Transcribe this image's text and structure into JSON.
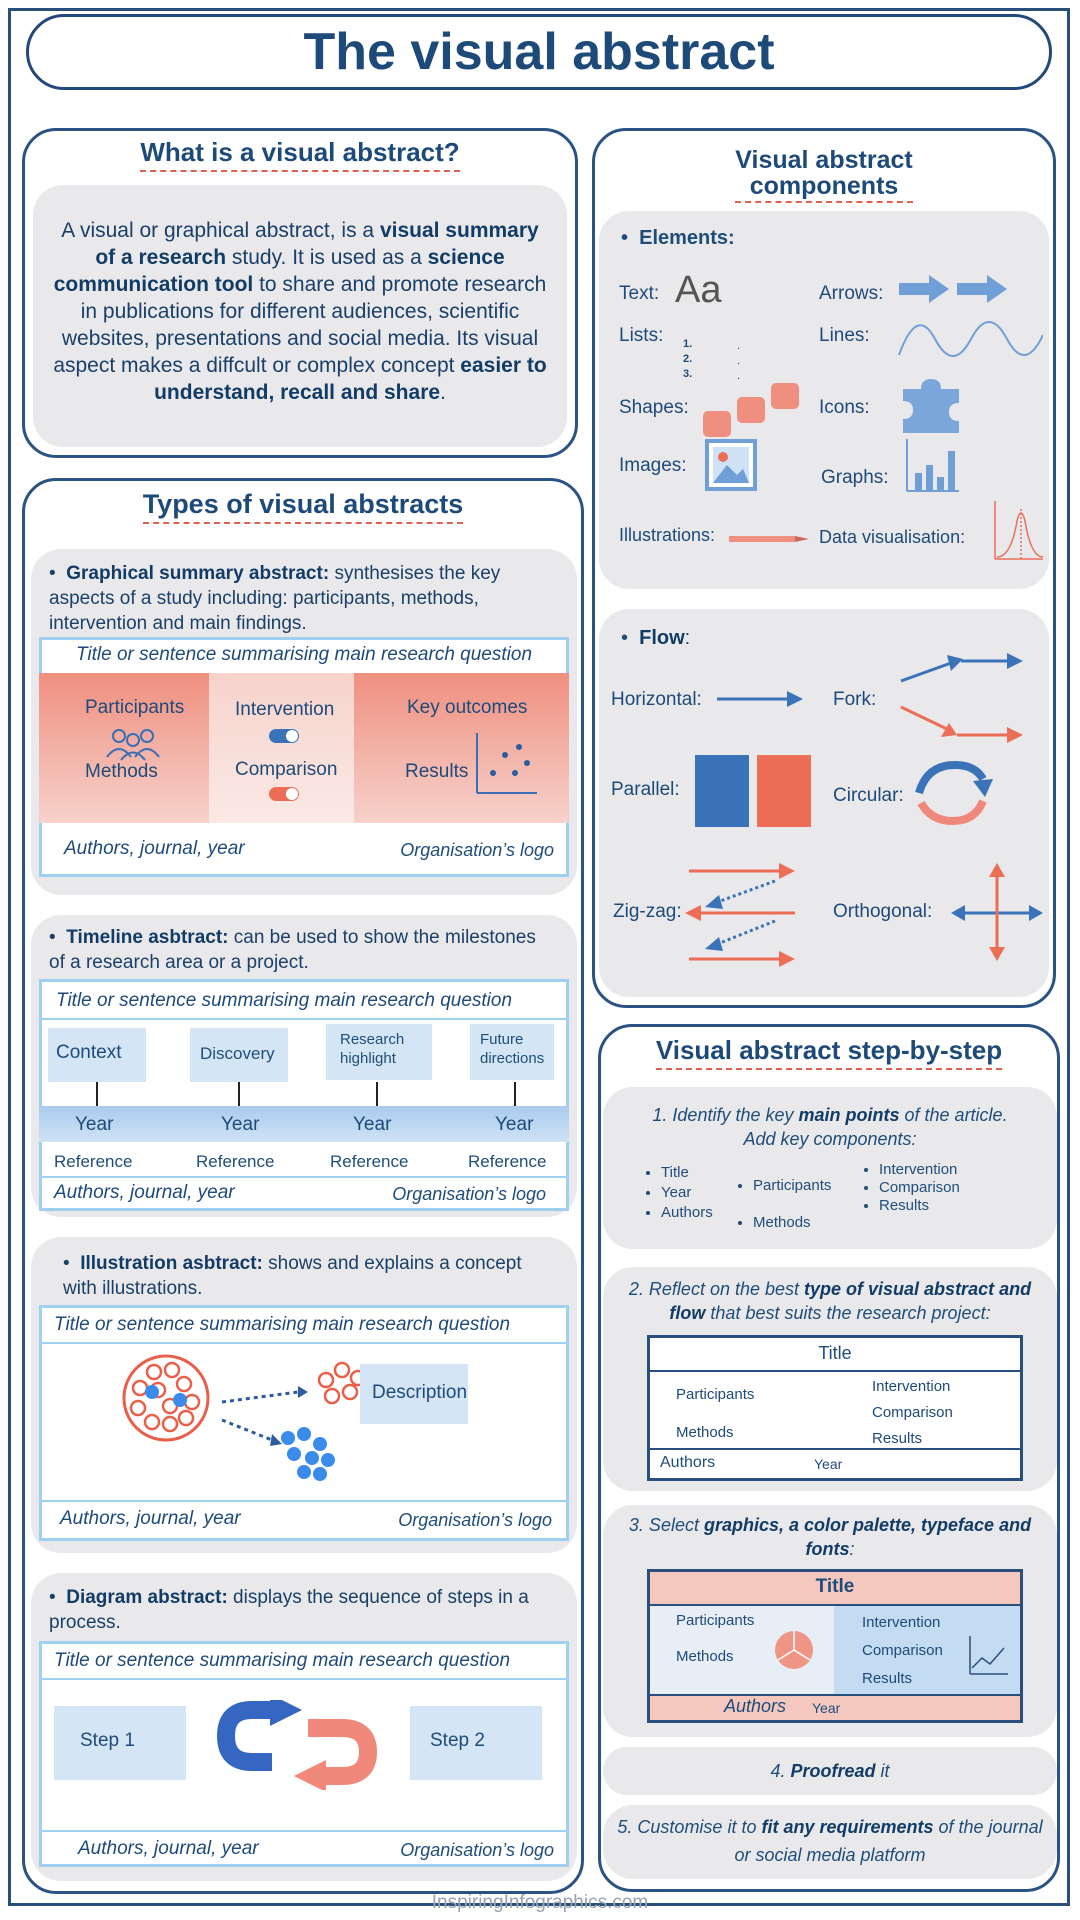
{
  "title": "The visual abstract",
  "what": {
    "heading": "What is a visual abstract?",
    "p1": "A visual or graphical abstract, is a ",
    "b1": "visual summary of a research",
    "p2": " study. It is used as a ",
    "b2": "science communication tool",
    "p3": " to share and promote research in publications for different audiences, scientific websites, presentations and social media. Its visual aspect makes a diffcult or complex concept ",
    "b3": "easier to understand, recall and share",
    "p4": "."
  },
  "types": {
    "heading": "Types of visual abstracts",
    "graphical": {
      "bold": "Graphical summary abstract:",
      "text": " synthesises the key aspects of a study including: participants, methods, intervention and main findings.",
      "title": "Title or sentence summarising main research question",
      "participants": "Participants",
      "methods": "Methods",
      "intervention": "Intervention",
      "comparison": "Comparison",
      "key_outcomes": "Key outcomes",
      "results": "Results",
      "authors": "Authors, journal, year",
      "logo": "Organisation’s logo"
    },
    "timeline": {
      "bold": "Timeline asbtract:",
      "text": " can be used to show the milestones of a research area or a project.",
      "title": "Title or sentence summarising main research question",
      "stages": [
        "Context",
        "Discovery",
        "Research highlight",
        "Future directions"
      ],
      "year": "Year",
      "reference": "Reference",
      "authors": "Authors, journal, year",
      "logo": "Organisation’s logo"
    },
    "illustration": {
      "bold": "Illustration asbtract:",
      "text": " shows and explains a concept with illustrations.",
      "title": "Title or sentence summarising main research question",
      "description": "Description",
      "authors": "Authors, journal, year",
      "logo": "Organisation’s logo"
    },
    "diagram": {
      "bold": "Diagram abstract:",
      "text": " displays the sequence of steps in a process.",
      "title": "Title or sentence summarising main research question",
      "step1": "Step 1",
      "step2": "Step 2",
      "authors": "Authors, journal, year",
      "logo": "Organisation’s logo"
    }
  },
  "components": {
    "heading1": "Visual abstract",
    "heading2": "components",
    "elements_label": "Elements:",
    "text": "Text:",
    "aa": "Aa",
    "arrows": "Arrows:",
    "lists": "Lists:",
    "list_nums": [
      "1.",
      "2.",
      "3."
    ],
    "lines": "Lines:",
    "shapes": "Shapes:",
    "icons": "Icons:",
    "images": "Images:",
    "graphs": "Graphs:",
    "illustrations": "Illustrations:",
    "data_vis": "Data visualisation:",
    "flow_label": "Flow",
    "flow_colon": ":",
    "horizontal": "Horizontal:",
    "fork": "Fork:",
    "parallel": "Parallel:",
    "circular": "Circular:",
    "zigzag": "Zig-zag:",
    "orthogonal": "Orthogonal:",
    "colors": {
      "blue": "#3a73b8",
      "red": "#ec6e57",
      "light_blue": "#6f9fd6"
    }
  },
  "steps": {
    "heading": "Visual abstract step-by-step",
    "s1a": "1. Identify the key ",
    "s1b": "main points",
    "s1c": " of the article.",
    "s1d": "Add key components:",
    "list1": [
      "Title",
      "Year",
      "Authors"
    ],
    "list2": [
      "Participants",
      "Methods"
    ],
    "list3": [
      "Intervention",
      "Comparison",
      "Results"
    ],
    "s2a": "2. Reflect on the best ",
    "s2b": "type of visual abstract and flow",
    "s2c": " that best suits the research project:",
    "m_title": "Title",
    "m_participants": "Participants",
    "m_methods": "Methods",
    "m_intervention": "Intervention",
    "m_comparison": "Comparison",
    "m_results": "Results",
    "m_authors": "Authors",
    "m_year": "Year",
    "s3a": "3. Select ",
    "s3b": "graphics, a color palette, typeface and fonts",
    "s3c": ":",
    "s4a": "4. ",
    "s4b": "Proofread",
    "s4c": " it",
    "s5a": "5. Customise it to ",
    "s5b": "fit any requirements",
    "s5c": " of the journal or social media platform"
  },
  "footer": "InspiringInfographics.com"
}
